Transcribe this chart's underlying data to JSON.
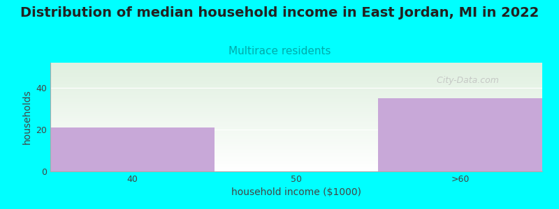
{
  "title": "Distribution of median household income in East Jordan, MI in 2022",
  "subtitle": "Multirace residents",
  "subtitle_color": "#00aaaa",
  "xlabel": "household income ($1000)",
  "ylabel": "households",
  "categories": [
    "40",
    "50",
    ">60"
  ],
  "values": [
    21,
    0,
    35
  ],
  "bar_color": "#c8a8d8",
  "background_color": "#00ffff",
  "plot_bg_top": "#e0f0e0",
  "plot_bg_bottom": "#ffffff",
  "ylim": [
    0,
    52
  ],
  "yticks": [
    0,
    20,
    40
  ],
  "watermark": " City-Data.com",
  "title_fontsize": 14,
  "subtitle_fontsize": 11,
  "label_fontsize": 10,
  "tick_fontsize": 9
}
